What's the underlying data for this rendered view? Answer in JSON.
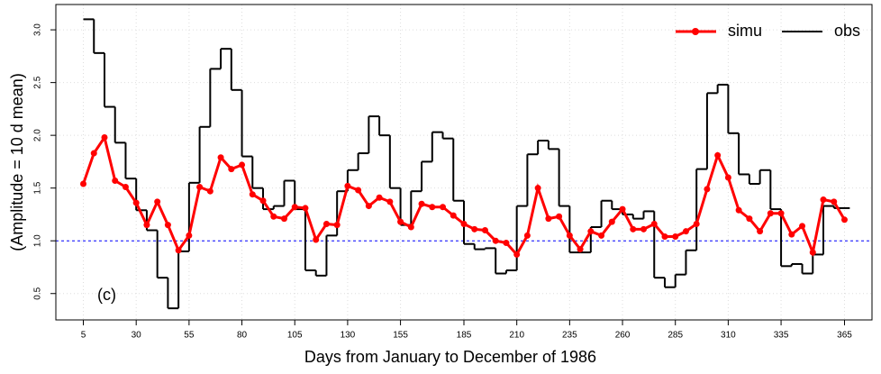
{
  "chart_data": {
    "type": "line",
    "xlabel": "Days from January to December of 1986",
    "ylabel": "(Amplitude = 10 d mean)",
    "annotation": "(c)",
    "x": [
      5,
      10,
      15,
      20,
      25,
      30,
      35,
      40,
      45,
      50,
      55,
      60,
      65,
      70,
      75,
      80,
      85,
      90,
      95,
      100,
      105,
      110,
      115,
      120,
      125,
      130,
      135,
      140,
      145,
      150,
      155,
      160,
      165,
      170,
      175,
      180,
      185,
      190,
      195,
      200,
      205,
      210,
      215,
      220,
      225,
      230,
      235,
      240,
      245,
      250,
      255,
      260,
      265,
      270,
      275,
      280,
      285,
      290,
      295,
      300,
      305,
      310,
      315,
      320,
      325,
      330,
      335,
      340,
      345,
      350,
      355,
      360,
      365
    ],
    "series": [
      {
        "name": "simu",
        "color": "#ff0000",
        "style": "line-points",
        "values": [
          1.54,
          1.83,
          1.98,
          1.57,
          1.51,
          1.36,
          1.15,
          1.37,
          1.15,
          0.91,
          1.05,
          1.51,
          1.47,
          1.79,
          1.68,
          1.72,
          1.44,
          1.38,
          1.23,
          1.21,
          1.32,
          1.31,
          1.01,
          1.16,
          1.15,
          1.52,
          1.48,
          1.33,
          1.41,
          1.37,
          1.18,
          1.13,
          1.35,
          1.32,
          1.32,
          1.24,
          1.16,
          1.11,
          1.1,
          1.0,
          0.98,
          0.87,
          1.05,
          1.5,
          1.21,
          1.23,
          1.05,
          0.92,
          1.09,
          1.05,
          1.18,
          1.3,
          1.11,
          1.11,
          1.16,
          1.04,
          1.04,
          1.09,
          1.16,
          1.49,
          1.81,
          1.6,
          1.29,
          1.21,
          1.09,
          1.26,
          1.26,
          1.06,
          1.14,
          0.89,
          1.39,
          1.37,
          1.2
        ]
      },
      {
        "name": "obs",
        "color": "#000000",
        "style": "step",
        "values": [
          3.1,
          2.78,
          2.27,
          1.93,
          1.59,
          1.29,
          1.1,
          0.65,
          0.36,
          0.9,
          1.55,
          2.08,
          2.63,
          2.82,
          2.43,
          1.8,
          1.5,
          1.3,
          1.33,
          1.57,
          1.3,
          0.72,
          0.67,
          1.05,
          1.47,
          1.67,
          1.83,
          2.18,
          2.0,
          1.5,
          1.15,
          1.47,
          1.75,
          2.03,
          1.97,
          1.38,
          0.97,
          0.92,
          0.93,
          0.69,
          0.72,
          1.33,
          1.82,
          1.95,
          1.87,
          1.33,
          0.89,
          0.89,
          1.13,
          1.38,
          1.3,
          1.25,
          1.21,
          1.28,
          0.65,
          0.56,
          0.68,
          0.91,
          1.68,
          2.4,
          2.48,
          2.02,
          1.63,
          1.54,
          1.67,
          1.3,
          0.76,
          0.78,
          0.69,
          0.87,
          1.33,
          1.31,
          1.31
        ]
      }
    ],
    "xlim": [
      -8,
      378
    ],
    "ylim": [
      0.25,
      3.24
    ],
    "xticks": [
      5,
      30,
      55,
      80,
      105,
      130,
      155,
      185,
      210,
      235,
      260,
      285,
      310,
      335,
      365
    ],
    "yticks": [
      0.5,
      {
        "value": 1,
        "label": "1.0"
      },
      1.5,
      {
        "value": 2,
        "label": "2.0"
      },
      2.5,
      {
        "value": 3,
        "label": "3.0"
      }
    ],
    "reference_line": {
      "value": 1,
      "color": "#0000ff"
    },
    "grid": true,
    "legend": "topright"
  }
}
